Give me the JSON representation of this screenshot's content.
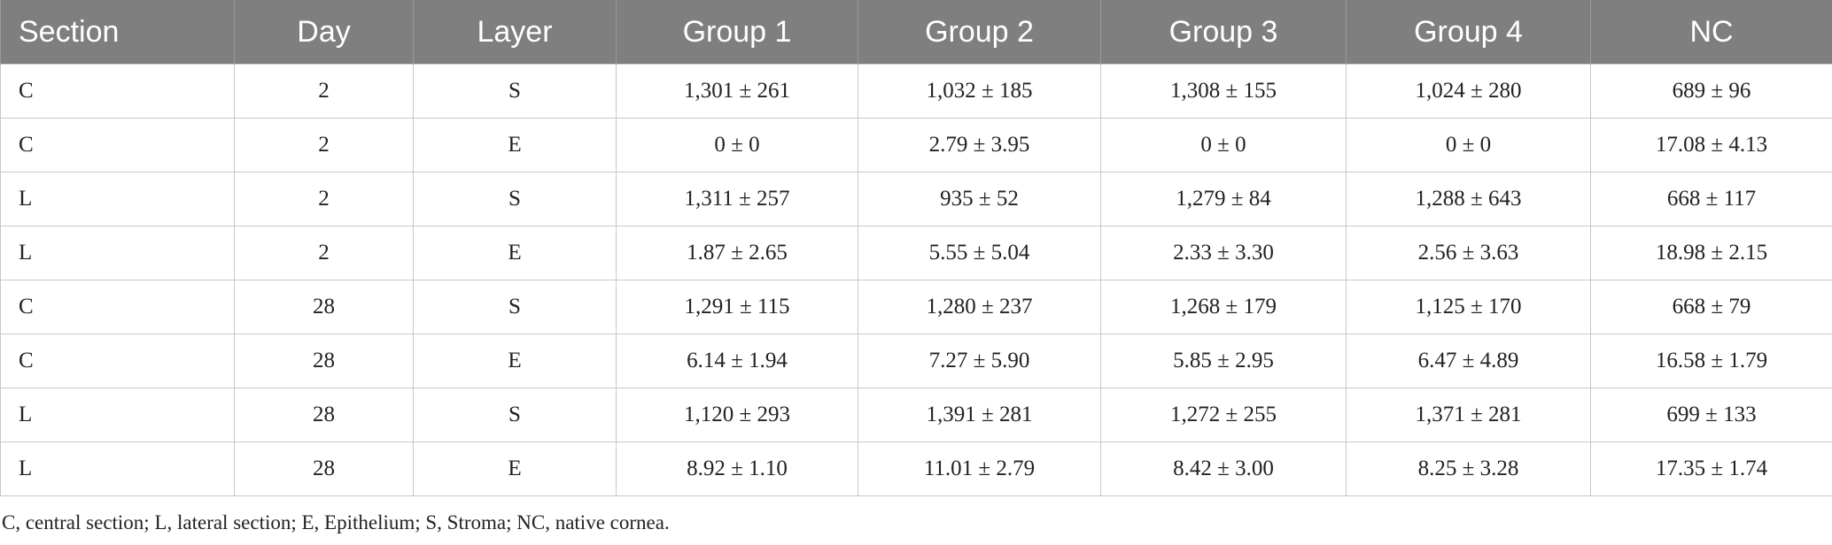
{
  "table": {
    "header": [
      "Section",
      "Day",
      "Layer",
      "Group 1",
      "Group 2",
      "Group 3",
      "Group 4",
      "NC"
    ],
    "rows": [
      [
        "C",
        "2",
        "S",
        "1,301 ± 261",
        "1,032 ± 185",
        "1,308 ± 155",
        "1,024 ± 280",
        "689 ± 96"
      ],
      [
        "C",
        "2",
        "E",
        "0 ± 0",
        "2.79 ± 3.95",
        "0 ± 0",
        "0 ± 0",
        "17.08 ± 4.13"
      ],
      [
        "L",
        "2",
        "S",
        "1,311 ± 257",
        "935 ± 52",
        "1,279 ± 84",
        "1,288 ± 643",
        "668 ± 117"
      ],
      [
        "L",
        "2",
        "E",
        "1.87 ± 2.65",
        "5.55 ± 5.04",
        "2.33 ± 3.30",
        "2.56 ± 3.63",
        "18.98 ± 2.15"
      ],
      [
        "C",
        "28",
        "S",
        "1,291 ± 115",
        "1,280 ± 237",
        "1,268 ± 179",
        "1,125 ± 170",
        "668 ± 79"
      ],
      [
        "C",
        "28",
        "E",
        "6.14 ± 1.94",
        "7.27 ± 5.90",
        "5.85 ± 2.95",
        "6.47 ± 4.89",
        "16.58 ± 1.79"
      ],
      [
        "L",
        "28",
        "S",
        "1,120 ± 293",
        "1,391 ± 281",
        "1,272 ± 255",
        "1,371 ± 281",
        "699 ± 133"
      ],
      [
        "L",
        "28",
        "E",
        "8.92 ± 1.10",
        "11.01 ± 2.79",
        "8.42 ± 3.00",
        "8.25 ± 3.28",
        "17.35 ± 1.74"
      ]
    ]
  },
  "footnote": "C, central section; L, lateral section; E, Epithelium; S, Stroma; NC, native cornea."
}
